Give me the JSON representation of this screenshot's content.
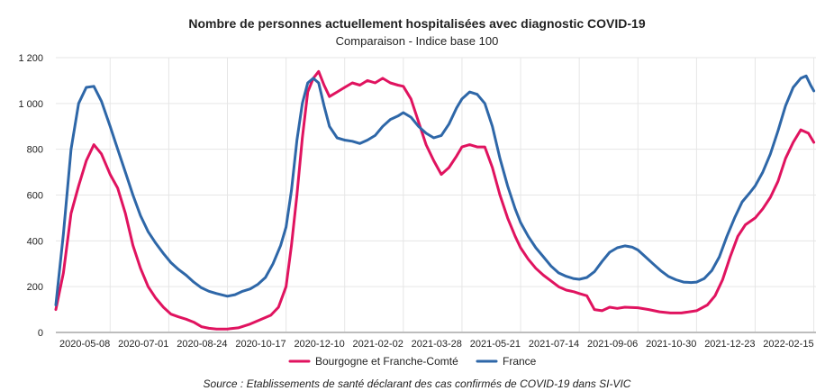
{
  "chart_data": {
    "type": "line",
    "title": "Nombre de personnes actuellement hospitalisées avec diagnostic COVID-19",
    "subtitle": "Comparaison - Indice base 100",
    "source": "Source : Etablissements de santé déclarant des cas confirmés de COVID-19 dans SI-VIC",
    "ylim": [
      0,
      1200
    ],
    "yticks": [
      {
        "value": 0,
        "label": "0"
      },
      {
        "value": 200,
        "label": "200"
      },
      {
        "value": 400,
        "label": "400"
      },
      {
        "value": 600,
        "label": "600"
      },
      {
        "value": 800,
        "label": "800"
      },
      {
        "value": 1000,
        "label": "1 000"
      },
      {
        "value": 1200,
        "label": "1 200"
      }
    ],
    "xlim": [
      "2020-03-19",
      "2022-02-17"
    ],
    "xticks": [
      "2020-05-08",
      "2020-07-01",
      "2020-08-24",
      "2020-10-17",
      "2020-12-10",
      "2021-02-02",
      "2021-03-28",
      "2021-05-21",
      "2021-07-14",
      "2021-09-06",
      "2021-10-30",
      "2021-12-23",
      "2022-02-15"
    ],
    "grid": true,
    "legend_position": "bottom",
    "series": [
      {
        "name": "Bourgogne et Franche-Comté",
        "color": "#e0135f",
        "points": [
          [
            "2020-03-19",
            100
          ],
          [
            "2020-03-26",
            260
          ],
          [
            "2020-04-02",
            520
          ],
          [
            "2020-04-09",
            640
          ],
          [
            "2020-04-16",
            750
          ],
          [
            "2020-04-23",
            820
          ],
          [
            "2020-04-30",
            780
          ],
          [
            "2020-05-08",
            690
          ],
          [
            "2020-05-15",
            630
          ],
          [
            "2020-05-22",
            520
          ],
          [
            "2020-05-29",
            380
          ],
          [
            "2020-06-05",
            280
          ],
          [
            "2020-06-12",
            200
          ],
          [
            "2020-06-19",
            150
          ],
          [
            "2020-06-26",
            110
          ],
          [
            "2020-07-03",
            80
          ],
          [
            "2020-07-10",
            68
          ],
          [
            "2020-07-17",
            58
          ],
          [
            "2020-07-24",
            45
          ],
          [
            "2020-07-31",
            25
          ],
          [
            "2020-08-07",
            18
          ],
          [
            "2020-08-14",
            15
          ],
          [
            "2020-08-24",
            15
          ],
          [
            "2020-09-03",
            20
          ],
          [
            "2020-09-13",
            35
          ],
          [
            "2020-09-23",
            55
          ],
          [
            "2020-10-03",
            75
          ],
          [
            "2020-10-10",
            110
          ],
          [
            "2020-10-17",
            200
          ],
          [
            "2020-10-22",
            380
          ],
          [
            "2020-10-27",
            600
          ],
          [
            "2020-11-01",
            850
          ],
          [
            "2020-11-06",
            1050
          ],
          [
            "2020-11-11",
            1110
          ],
          [
            "2020-11-16",
            1140
          ],
          [
            "2020-11-21",
            1080
          ],
          [
            "2020-11-26",
            1030
          ],
          [
            "2020-12-03",
            1050
          ],
          [
            "2020-12-10",
            1070
          ],
          [
            "2020-12-17",
            1090
          ],
          [
            "2020-12-24",
            1080
          ],
          [
            "2020-12-31",
            1100
          ],
          [
            "2021-01-07",
            1090
          ],
          [
            "2021-01-14",
            1110
          ],
          [
            "2021-01-21",
            1090
          ],
          [
            "2021-01-28",
            1080
          ],
          [
            "2021-02-02",
            1075
          ],
          [
            "2021-02-09",
            1020
          ],
          [
            "2021-02-16",
            920
          ],
          [
            "2021-02-23",
            820
          ],
          [
            "2021-03-02",
            750
          ],
          [
            "2021-03-09",
            690
          ],
          [
            "2021-03-16",
            720
          ],
          [
            "2021-03-23",
            770
          ],
          [
            "2021-03-28",
            810
          ],
          [
            "2021-04-04",
            820
          ],
          [
            "2021-04-11",
            810
          ],
          [
            "2021-04-18",
            810
          ],
          [
            "2021-04-25",
            720
          ],
          [
            "2021-05-02",
            600
          ],
          [
            "2021-05-09",
            500
          ],
          [
            "2021-05-16",
            420
          ],
          [
            "2021-05-21",
            370
          ],
          [
            "2021-05-28",
            320
          ],
          [
            "2021-06-04",
            280
          ],
          [
            "2021-06-11",
            250
          ],
          [
            "2021-06-18",
            225
          ],
          [
            "2021-06-25",
            200
          ],
          [
            "2021-07-02",
            185
          ],
          [
            "2021-07-09",
            178
          ],
          [
            "2021-07-14",
            170
          ],
          [
            "2021-07-21",
            160
          ],
          [
            "2021-07-28",
            100
          ],
          [
            "2021-08-04",
            95
          ],
          [
            "2021-08-11",
            110
          ],
          [
            "2021-08-18",
            105
          ],
          [
            "2021-08-25",
            110
          ],
          [
            "2021-09-06",
            108
          ],
          [
            "2021-09-16",
            100
          ],
          [
            "2021-09-26",
            90
          ],
          [
            "2021-10-06",
            85
          ],
          [
            "2021-10-16",
            85
          ],
          [
            "2021-10-30",
            95
          ],
          [
            "2021-11-09",
            120
          ],
          [
            "2021-11-16",
            160
          ],
          [
            "2021-11-23",
            230
          ],
          [
            "2021-11-30",
            330
          ],
          [
            "2021-12-07",
            420
          ],
          [
            "2021-12-14",
            470
          ],
          [
            "2021-12-23",
            500
          ],
          [
            "2021-12-30",
            540
          ],
          [
            "2022-01-06",
            590
          ],
          [
            "2022-01-13",
            660
          ],
          [
            "2022-01-20",
            760
          ],
          [
            "2022-01-27",
            830
          ],
          [
            "2022-02-03",
            885
          ],
          [
            "2022-02-10",
            870
          ],
          [
            "2022-02-15",
            830
          ]
        ]
      },
      {
        "name": "France",
        "color": "#2e67a8",
        "points": [
          [
            "2020-03-19",
            120
          ],
          [
            "2020-03-26",
            430
          ],
          [
            "2020-04-02",
            800
          ],
          [
            "2020-04-09",
            1000
          ],
          [
            "2020-04-16",
            1070
          ],
          [
            "2020-04-23",
            1075
          ],
          [
            "2020-04-30",
            1010
          ],
          [
            "2020-05-08",
            900
          ],
          [
            "2020-05-15",
            800
          ],
          [
            "2020-05-22",
            700
          ],
          [
            "2020-05-29",
            600
          ],
          [
            "2020-06-05",
            510
          ],
          [
            "2020-06-12",
            440
          ],
          [
            "2020-06-19",
            390
          ],
          [
            "2020-06-26",
            345
          ],
          [
            "2020-07-03",
            305
          ],
          [
            "2020-07-10",
            275
          ],
          [
            "2020-07-17",
            250
          ],
          [
            "2020-07-24",
            220
          ],
          [
            "2020-07-31",
            195
          ],
          [
            "2020-08-07",
            180
          ],
          [
            "2020-08-14",
            170
          ],
          [
            "2020-08-24",
            158
          ],
          [
            "2020-08-31",
            165
          ],
          [
            "2020-09-07",
            180
          ],
          [
            "2020-09-14",
            190
          ],
          [
            "2020-09-21",
            210
          ],
          [
            "2020-09-28",
            240
          ],
          [
            "2020-10-05",
            300
          ],
          [
            "2020-10-12",
            380
          ],
          [
            "2020-10-17",
            460
          ],
          [
            "2020-10-22",
            620
          ],
          [
            "2020-10-27",
            840
          ],
          [
            "2020-11-01",
            1000
          ],
          [
            "2020-11-06",
            1090
          ],
          [
            "2020-11-11",
            1110
          ],
          [
            "2020-11-16",
            1090
          ],
          [
            "2020-11-21",
            990
          ],
          [
            "2020-11-26",
            900
          ],
          [
            "2020-12-03",
            850
          ],
          [
            "2020-12-10",
            840
          ],
          [
            "2020-12-17",
            835
          ],
          [
            "2020-12-24",
            825
          ],
          [
            "2020-12-31",
            840
          ],
          [
            "2021-01-07",
            860
          ],
          [
            "2021-01-14",
            900
          ],
          [
            "2021-01-21",
            930
          ],
          [
            "2021-01-28",
            945
          ],
          [
            "2021-02-02",
            960
          ],
          [
            "2021-02-09",
            940
          ],
          [
            "2021-02-16",
            900
          ],
          [
            "2021-02-23",
            870
          ],
          [
            "2021-03-02",
            850
          ],
          [
            "2021-03-09",
            860
          ],
          [
            "2021-03-16",
            910
          ],
          [
            "2021-03-23",
            980
          ],
          [
            "2021-03-28",
            1020
          ],
          [
            "2021-04-04",
            1050
          ],
          [
            "2021-04-11",
            1040
          ],
          [
            "2021-04-18",
            1000
          ],
          [
            "2021-04-25",
            900
          ],
          [
            "2021-05-02",
            760
          ],
          [
            "2021-05-09",
            640
          ],
          [
            "2021-05-16",
            540
          ],
          [
            "2021-05-21",
            480
          ],
          [
            "2021-05-28",
            420
          ],
          [
            "2021-06-04",
            370
          ],
          [
            "2021-06-11",
            330
          ],
          [
            "2021-06-18",
            290
          ],
          [
            "2021-06-25",
            260
          ],
          [
            "2021-07-02",
            245
          ],
          [
            "2021-07-09",
            235
          ],
          [
            "2021-07-14",
            232
          ],
          [
            "2021-07-21",
            240
          ],
          [
            "2021-07-28",
            265
          ],
          [
            "2021-08-04",
            310
          ],
          [
            "2021-08-11",
            350
          ],
          [
            "2021-08-18",
            370
          ],
          [
            "2021-08-25",
            378
          ],
          [
            "2021-09-01",
            372
          ],
          [
            "2021-09-06",
            360
          ],
          [
            "2021-09-13",
            330
          ],
          [
            "2021-09-20",
            300
          ],
          [
            "2021-09-27",
            270
          ],
          [
            "2021-10-04",
            245
          ],
          [
            "2021-10-11",
            230
          ],
          [
            "2021-10-18",
            220
          ],
          [
            "2021-10-25",
            218
          ],
          [
            "2021-10-30",
            220
          ],
          [
            "2021-11-06",
            235
          ],
          [
            "2021-11-13",
            270
          ],
          [
            "2021-11-20",
            330
          ],
          [
            "2021-11-27",
            420
          ],
          [
            "2021-12-04",
            500
          ],
          [
            "2021-12-11",
            570
          ],
          [
            "2021-12-18",
            610
          ],
          [
            "2021-12-23",
            640
          ],
          [
            "2021-12-30",
            700
          ],
          [
            "2022-01-06",
            780
          ],
          [
            "2022-01-13",
            880
          ],
          [
            "2022-01-20",
            990
          ],
          [
            "2022-01-27",
            1070
          ],
          [
            "2022-02-03",
            1110
          ],
          [
            "2022-02-08",
            1120
          ],
          [
            "2022-02-12",
            1080
          ],
          [
            "2022-02-15",
            1055
          ]
        ]
      }
    ]
  }
}
